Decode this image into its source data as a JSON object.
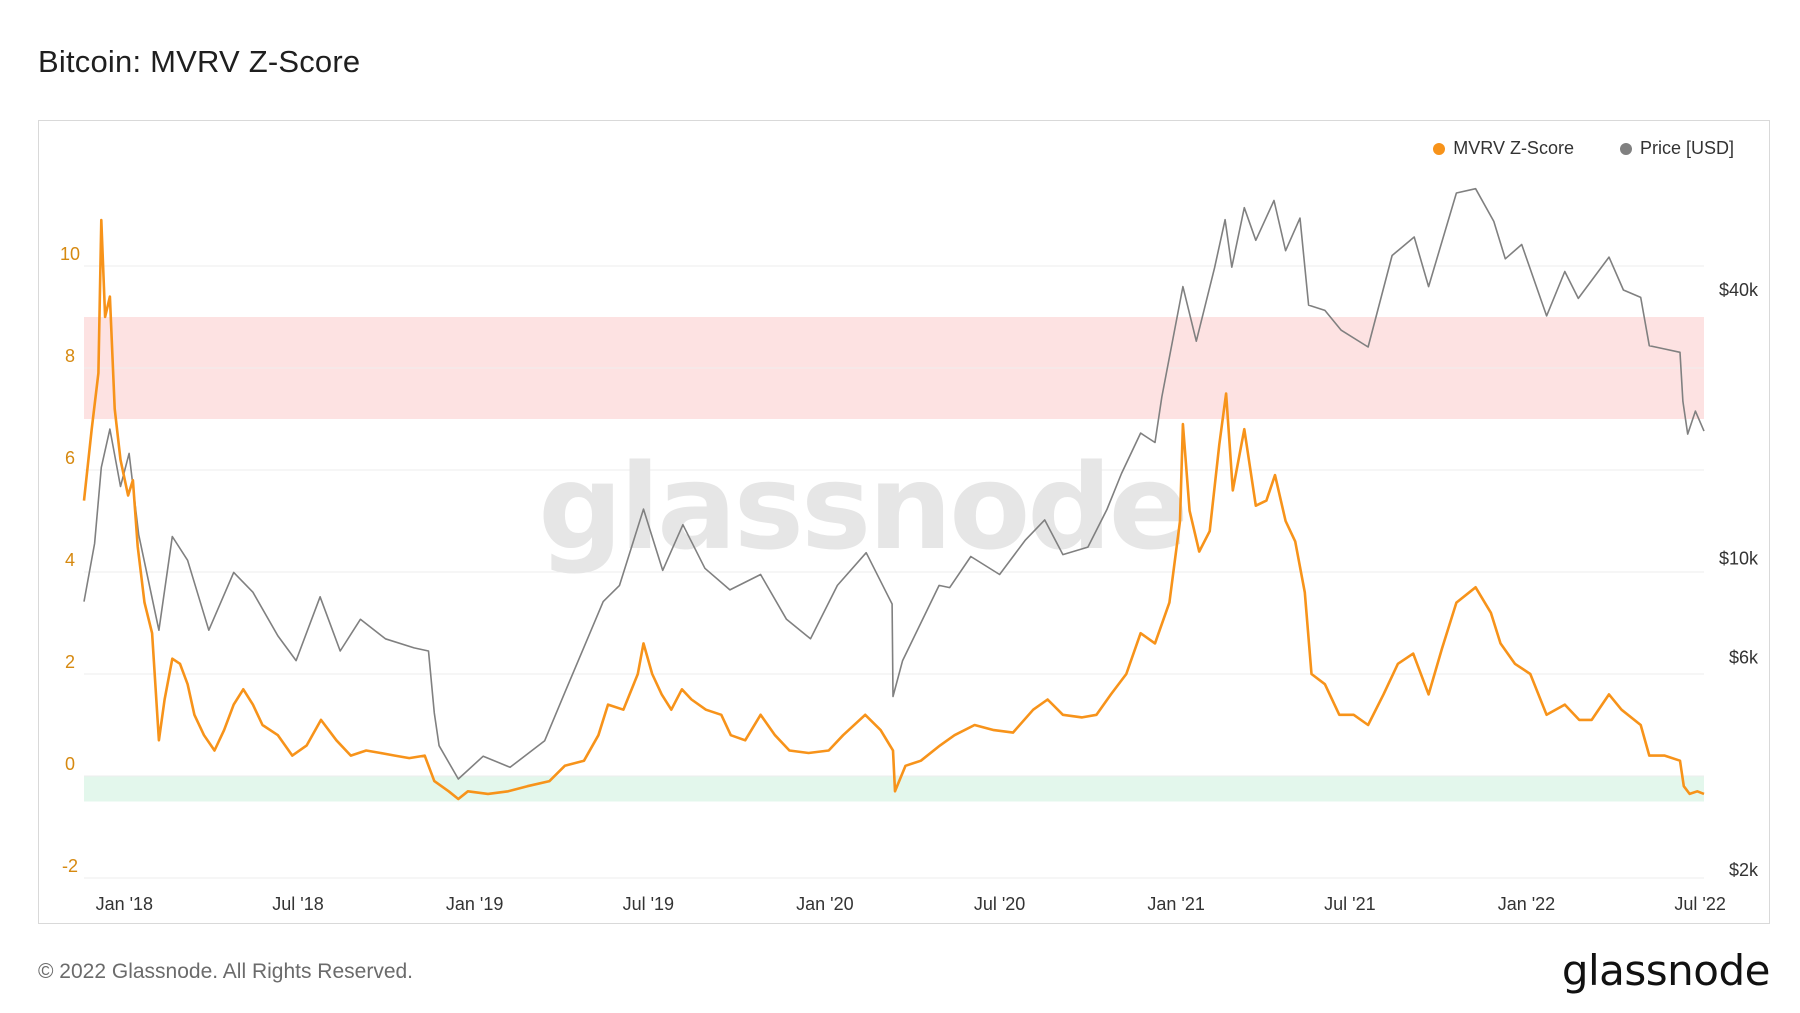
{
  "title": "Bitcoin: MVRV Z-Score",
  "footer": {
    "copyright": "© 2022 Glassnode. All Rights Reserved.",
    "logo": "glassnode"
  },
  "watermark": "glassnode",
  "colors": {
    "zscore": "#f7931a",
    "price": "#808080",
    "red_band": "#fde2e2",
    "green_band": "#e3f7ec",
    "axis_left": "#d68910",
    "grid": "#eeeeee"
  },
  "chart_data": {
    "type": "line",
    "title": "Bitcoin: MVRV Z-Score",
    "legend_placement": "top-right",
    "grid": true,
    "x_ticks": [
      "Jan '18",
      "Jul '18",
      "Jan '19",
      "Jul '19",
      "Jan '20",
      "Jul '20",
      "Jan '21",
      "Jul '21",
      "Jan '22",
      "Jul '22"
    ],
    "y_left": {
      "ticks": [
        "-2",
        "0",
        "2",
        "4",
        "6",
        "8",
        "10"
      ],
      "range": [
        -2,
        12
      ]
    },
    "y_right": {
      "scale": "log",
      "ticks": [
        "$2k",
        "$6k",
        "$10k",
        "$40k"
      ],
      "range": [
        2000,
        100000
      ]
    },
    "bands": [
      {
        "axis": "left",
        "from": 7,
        "to": 9,
        "color": "#fde2e2"
      },
      {
        "axis": "left",
        "from": -0.5,
        "to": 0,
        "color": "#e3f7ec"
      }
    ],
    "series": [
      {
        "name": "MVRV Z-Score",
        "axis": "left",
        "color": "#f7931a",
        "points": [
          [
            "2017-11-20",
            5.4
          ],
          [
            "2017-11-28",
            6.8
          ],
          [
            "2017-12-05",
            7.9
          ],
          [
            "2017-12-08",
            10.9
          ],
          [
            "2017-12-12",
            9.0
          ],
          [
            "2017-12-17",
            9.4
          ],
          [
            "2017-12-22",
            7.2
          ],
          [
            "2017-12-28",
            6.2
          ],
          [
            "2018-01-05",
            5.5
          ],
          [
            "2018-01-10",
            5.8
          ],
          [
            "2018-01-15",
            4.5
          ],
          [
            "2018-01-22",
            3.4
          ],
          [
            "2018-01-30",
            2.8
          ],
          [
            "2018-02-06",
            0.7
          ],
          [
            "2018-02-12",
            1.5
          ],
          [
            "2018-02-20",
            2.3
          ],
          [
            "2018-02-28",
            2.2
          ],
          [
            "2018-03-08",
            1.8
          ],
          [
            "2018-03-15",
            1.2
          ],
          [
            "2018-03-25",
            0.8
          ],
          [
            "2018-04-05",
            0.5
          ],
          [
            "2018-04-15",
            0.9
          ],
          [
            "2018-04-25",
            1.4
          ],
          [
            "2018-05-05",
            1.7
          ],
          [
            "2018-05-15",
            1.4
          ],
          [
            "2018-05-25",
            1.0
          ],
          [
            "2018-06-10",
            0.8
          ],
          [
            "2018-06-25",
            0.4
          ],
          [
            "2018-07-10",
            0.6
          ],
          [
            "2018-07-25",
            1.1
          ],
          [
            "2018-08-10",
            0.7
          ],
          [
            "2018-08-25",
            0.4
          ],
          [
            "2018-09-10",
            0.5
          ],
          [
            "2018-09-25",
            0.45
          ],
          [
            "2018-10-10",
            0.4
          ],
          [
            "2018-10-25",
            0.35
          ],
          [
            "2018-11-10",
            0.4
          ],
          [
            "2018-11-20",
            -0.1
          ],
          [
            "2018-12-05",
            -0.3
          ],
          [
            "2018-12-15",
            -0.45
          ],
          [
            "2018-12-25",
            -0.3
          ],
          [
            "2019-01-15",
            -0.35
          ],
          [
            "2019-02-05",
            -0.3
          ],
          [
            "2019-02-25",
            -0.2
          ],
          [
            "2019-03-20",
            -0.1
          ],
          [
            "2019-04-05",
            0.2
          ],
          [
            "2019-04-25",
            0.3
          ],
          [
            "2019-05-10",
            0.8
          ],
          [
            "2019-05-20",
            1.4
          ],
          [
            "2019-06-05",
            1.3
          ],
          [
            "2019-06-20",
            2.0
          ],
          [
            "2019-06-26",
            2.6
          ],
          [
            "2019-07-05",
            2.0
          ],
          [
            "2019-07-15",
            1.6
          ],
          [
            "2019-07-25",
            1.3
          ],
          [
            "2019-08-05",
            1.7
          ],
          [
            "2019-08-15",
            1.5
          ],
          [
            "2019-08-30",
            1.3
          ],
          [
            "2019-09-15",
            1.2
          ],
          [
            "2019-09-25",
            0.8
          ],
          [
            "2019-10-10",
            0.7
          ],
          [
            "2019-10-26",
            1.2
          ],
          [
            "2019-11-10",
            0.8
          ],
          [
            "2019-11-25",
            0.5
          ],
          [
            "2019-12-15",
            0.45
          ],
          [
            "2020-01-05",
            0.5
          ],
          [
            "2020-01-20",
            0.8
          ],
          [
            "2020-02-12",
            1.2
          ],
          [
            "2020-02-28",
            0.9
          ],
          [
            "2020-03-12",
            0.5
          ],
          [
            "2020-03-14",
            -0.3
          ],
          [
            "2020-03-25",
            0.2
          ],
          [
            "2020-04-10",
            0.3
          ],
          [
            "2020-04-30",
            0.6
          ],
          [
            "2020-05-15",
            0.8
          ],
          [
            "2020-06-05",
            1.0
          ],
          [
            "2020-06-25",
            0.9
          ],
          [
            "2020-07-15",
            0.85
          ],
          [
            "2020-08-05",
            1.3
          ],
          [
            "2020-08-20",
            1.5
          ],
          [
            "2020-09-05",
            1.2
          ],
          [
            "2020-09-25",
            1.15
          ],
          [
            "2020-10-10",
            1.2
          ],
          [
            "2020-10-25",
            1.6
          ],
          [
            "2020-11-10",
            2.0
          ],
          [
            "2020-11-25",
            2.8
          ],
          [
            "2020-12-10",
            2.6
          ],
          [
            "2020-12-25",
            3.4
          ],
          [
            "2021-01-05",
            5.0
          ],
          [
            "2021-01-08",
            6.9
          ],
          [
            "2021-01-15",
            5.2
          ],
          [
            "2021-01-25",
            4.4
          ],
          [
            "2021-02-05",
            4.8
          ],
          [
            "2021-02-15",
            6.5
          ],
          [
            "2021-02-22",
            7.5
          ],
          [
            "2021-03-01",
            5.6
          ],
          [
            "2021-03-13",
            6.8
          ],
          [
            "2021-03-25",
            5.3
          ],
          [
            "2021-04-05",
            5.4
          ],
          [
            "2021-04-14",
            5.9
          ],
          [
            "2021-04-25",
            5.0
          ],
          [
            "2021-05-05",
            4.6
          ],
          [
            "2021-05-15",
            3.6
          ],
          [
            "2021-05-22",
            2.0
          ],
          [
            "2021-06-05",
            1.8
          ],
          [
            "2021-06-20",
            1.2
          ],
          [
            "2021-07-05",
            1.2
          ],
          [
            "2021-07-20",
            1.0
          ],
          [
            "2021-08-05",
            1.6
          ],
          [
            "2021-08-20",
            2.2
          ],
          [
            "2021-09-05",
            2.4
          ],
          [
            "2021-09-21",
            1.6
          ],
          [
            "2021-10-05",
            2.5
          ],
          [
            "2021-10-20",
            3.4
          ],
          [
            "2021-11-09",
            3.7
          ],
          [
            "2021-11-25",
            3.2
          ],
          [
            "2021-12-05",
            2.6
          ],
          [
            "2021-12-20",
            2.2
          ],
          [
            "2022-01-05",
            2.0
          ],
          [
            "2022-01-22",
            1.2
          ],
          [
            "2022-02-10",
            1.4
          ],
          [
            "2022-02-25",
            1.1
          ],
          [
            "2022-03-10",
            1.1
          ],
          [
            "2022-03-28",
            1.6
          ],
          [
            "2022-04-10",
            1.3
          ],
          [
            "2022-04-30",
            1.0
          ],
          [
            "2022-05-09",
            0.4
          ],
          [
            "2022-05-25",
            0.4
          ],
          [
            "2022-06-10",
            0.3
          ],
          [
            "2022-06-14",
            -0.2
          ],
          [
            "2022-06-20",
            -0.35
          ],
          [
            "2022-06-28",
            -0.3
          ],
          [
            "2022-07-05",
            -0.35
          ]
        ]
      },
      {
        "name": "Price [USD]",
        "axis": "right",
        "color": "#808080",
        "points": [
          [
            "2017-11-20",
            8000
          ],
          [
            "2017-12-01",
            10800
          ],
          [
            "2017-12-08",
            16000
          ],
          [
            "2017-12-17",
            19500
          ],
          [
            "2017-12-28",
            14500
          ],
          [
            "2018-01-06",
            17200
          ],
          [
            "2018-01-16",
            11300
          ],
          [
            "2018-02-06",
            6900
          ],
          [
            "2018-02-20",
            11200
          ],
          [
            "2018-03-08",
            9900
          ],
          [
            "2018-03-30",
            6900
          ],
          [
            "2018-04-25",
            9300
          ],
          [
            "2018-05-15",
            8400
          ],
          [
            "2018-06-10",
            6700
          ],
          [
            "2018-06-29",
            5900
          ],
          [
            "2018-07-24",
            8200
          ],
          [
            "2018-08-14",
            6200
          ],
          [
            "2018-09-04",
            7300
          ],
          [
            "2018-09-30",
            6600
          ],
          [
            "2018-10-30",
            6300
          ],
          [
            "2018-11-14",
            6200
          ],
          [
            "2018-11-20",
            4500
          ],
          [
            "2018-11-25",
            3800
          ],
          [
            "2018-12-15",
            3200
          ],
          [
            "2019-01-10",
            3600
          ],
          [
            "2019-02-07",
            3400
          ],
          [
            "2019-03-15",
            3900
          ],
          [
            "2019-04-05",
            5000
          ],
          [
            "2019-05-15",
            8000
          ],
          [
            "2019-06-01",
            8700
          ],
          [
            "2019-06-26",
            12900
          ],
          [
            "2019-07-16",
            9400
          ],
          [
            "2019-08-06",
            11900
          ],
          [
            "2019-08-29",
            9500
          ],
          [
            "2019-09-24",
            8500
          ],
          [
            "2019-10-26",
            9200
          ],
          [
            "2019-11-22",
            7300
          ],
          [
            "2019-12-17",
            6600
          ],
          [
            "2020-01-14",
            8700
          ],
          [
            "2020-02-13",
            10300
          ],
          [
            "2020-03-11",
            7900
          ],
          [
            "2020-03-12",
            4900
          ],
          [
            "2020-03-22",
            5900
          ],
          [
            "2020-04-29",
            8700
          ],
          [
            "2020-05-10",
            8600
          ],
          [
            "2020-06-01",
            10100
          ],
          [
            "2020-07-01",
            9200
          ],
          [
            "2020-07-28",
            11000
          ],
          [
            "2020-08-17",
            12200
          ],
          [
            "2020-09-05",
            10200
          ],
          [
            "2020-10-01",
            10600
          ],
          [
            "2020-10-21",
            12900
          ],
          [
            "2020-11-05",
            15500
          ],
          [
            "2020-11-25",
            19100
          ],
          [
            "2020-12-10",
            18200
          ],
          [
            "2020-12-17",
            23000
          ],
          [
            "2021-01-08",
            40700
          ],
          [
            "2021-01-22",
            30700
          ],
          [
            "2021-02-10",
            44800
          ],
          [
            "2021-02-21",
            57500
          ],
          [
            "2021-02-28",
            45000
          ],
          [
            "2021-03-13",
            61200
          ],
          [
            "2021-03-25",
            51700
          ],
          [
            "2021-04-13",
            63500
          ],
          [
            "2021-04-25",
            49000
          ],
          [
            "2021-05-10",
            58000
          ],
          [
            "2021-05-19",
            37000
          ],
          [
            "2021-06-05",
            36000
          ],
          [
            "2021-06-22",
            32500
          ],
          [
            "2021-07-20",
            29800
          ],
          [
            "2021-08-14",
            47800
          ],
          [
            "2021-09-06",
            52600
          ],
          [
            "2021-09-21",
            40700
          ],
          [
            "2021-10-20",
            66000
          ],
          [
            "2021-11-09",
            67500
          ],
          [
            "2021-11-28",
            57000
          ],
          [
            "2021-12-10",
            47000
          ],
          [
            "2021-12-27",
            50600
          ],
          [
            "2022-01-22",
            35000
          ],
          [
            "2022-02-10",
            44000
          ],
          [
            "2022-02-24",
            38300
          ],
          [
            "2022-03-28",
            47400
          ],
          [
            "2022-04-12",
            40000
          ],
          [
            "2022-04-30",
            38500
          ],
          [
            "2022-05-09",
            30000
          ],
          [
            "2022-05-25",
            29500
          ],
          [
            "2022-06-10",
            29000
          ],
          [
            "2022-06-13",
            22500
          ],
          [
            "2022-06-18",
            19000
          ],
          [
            "2022-06-26",
            21400
          ],
          [
            "2022-07-05",
            19300
          ]
        ]
      }
    ]
  }
}
